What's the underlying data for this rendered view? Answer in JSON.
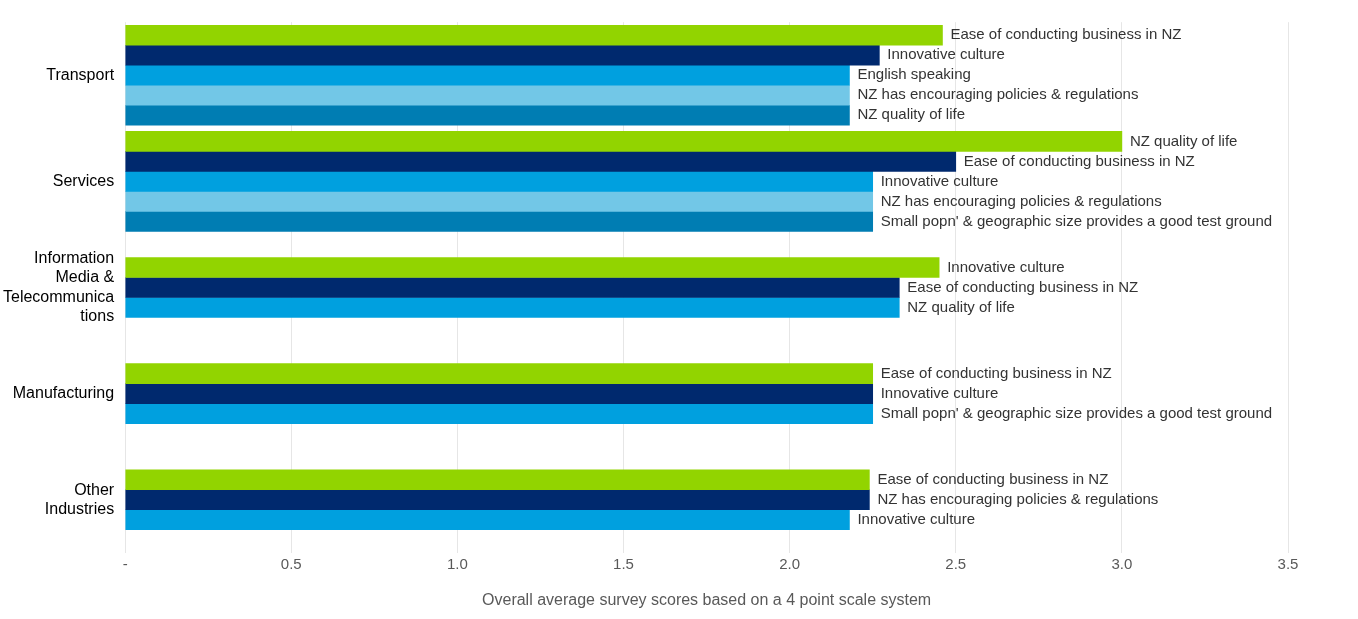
{
  "chart_data": {
    "type": "bar",
    "orientation": "horizontal",
    "xlabel": "Overall average survey scores based on a 4 point scale system",
    "categories": [
      "Transport",
      "Services",
      "Information Media & Telecommunications",
      "Manufacturing",
      "Other Industries"
    ],
    "series": [
      {
        "color": "#92d400",
        "values": [
          2.46,
          3.0,
          2.45,
          2.25,
          2.24
        ],
        "value_labels": [
          "Ease of conducting business in NZ",
          "NZ quality of life",
          "Innovative culture",
          "Ease of conducting business in NZ",
          "Ease of conducting business in NZ"
        ]
      },
      {
        "color": "#00296e",
        "values": [
          2.27,
          2.5,
          2.33,
          2.25,
          2.24
        ],
        "value_labels": [
          "Innovative culture",
          "Ease of conducting business in NZ",
          "Ease of conducting business in NZ",
          "Innovative culture",
          "NZ has encouraging policies & regulations"
        ]
      },
      {
        "color": "#00a0df",
        "values": [
          2.18,
          2.25,
          2.33,
          2.25,
          2.18
        ],
        "value_labels": [
          "English speaking",
          "Innovative culture",
          "NZ quality of life",
          "Small popn' & geographic size provides a good test ground",
          "Innovative culture"
        ]
      },
      {
        "color": "#72c7e7",
        "values": [
          2.18,
          2.25,
          null,
          null,
          null
        ],
        "value_labels": [
          "NZ has encouraging policies & regulations",
          "NZ has encouraging policies & regulations",
          null,
          null,
          null
        ]
      },
      {
        "color": "#007db3",
        "values": [
          2.18,
          2.25,
          null,
          null,
          null
        ],
        "value_labels": [
          "NZ quality of life",
          "Small popn' & geographic size provides a good test ground",
          null,
          null,
          null
        ]
      }
    ],
    "xlim": [
      0,
      3.5
    ],
    "xticks": [
      {
        "value": 0,
        "label": "-"
      },
      0.5,
      {
        "value": 1,
        "label": "1.0"
      },
      1.5,
      {
        "value": 2,
        "label": "2.0"
      },
      2.5,
      {
        "value": 3,
        "label": "3.0"
      },
      3.5
    ],
    "grid": "x",
    "legend": false
  }
}
